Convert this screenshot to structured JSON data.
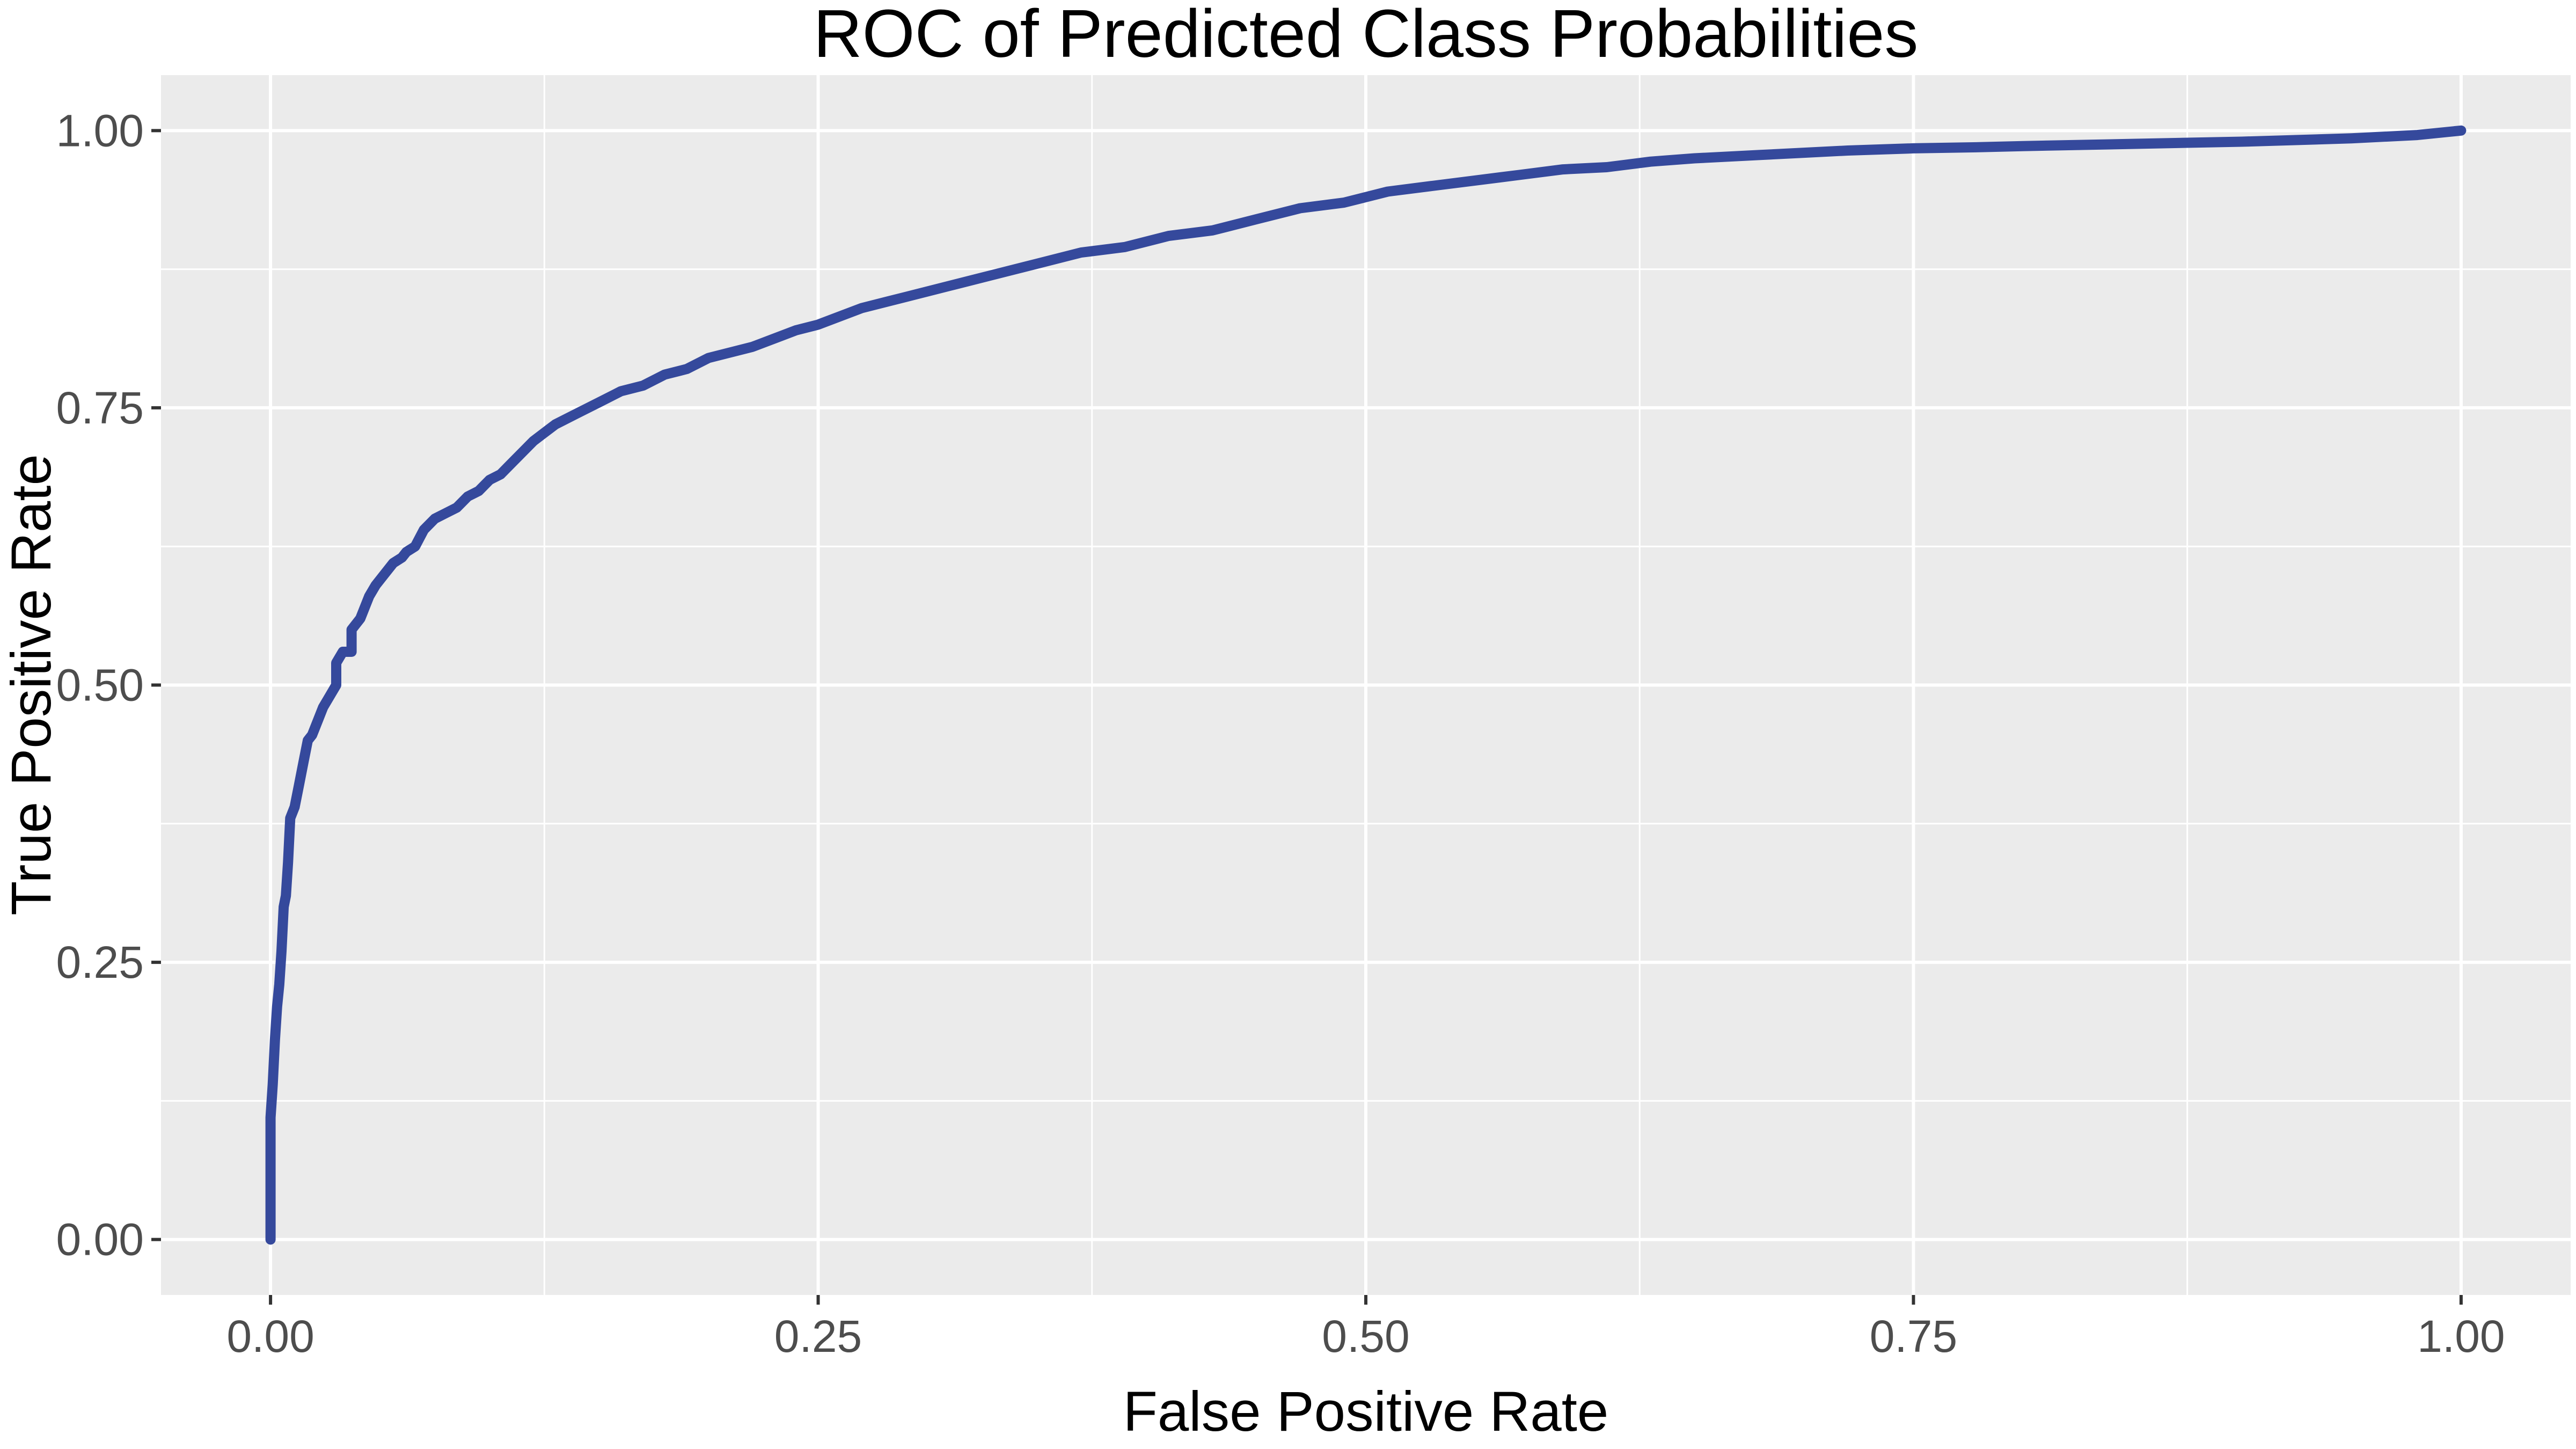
{
  "chart_data": {
    "type": "line",
    "title": "ROC of Predicted Class Probabilities",
    "xlabel": "False Positive Rate",
    "ylabel": "True Positive Rate",
    "xlim": [
      -0.05,
      1.05
    ],
    "ylim": [
      -0.05,
      1.05
    ],
    "x_ticks": [
      0,
      0.25,
      0.5,
      0.75,
      1
    ],
    "x_tick_labels": [
      "0.00",
      "0.25",
      "0.50",
      "0.75",
      "1.00"
    ],
    "y_ticks": [
      0,
      0.25,
      0.5,
      0.75,
      1
    ],
    "y_tick_labels": [
      "0.00",
      "0.25",
      "0.50",
      "0.75",
      "1.00"
    ],
    "grid": true,
    "legend": "none",
    "colors": {
      "panel_background": "#ebebeb",
      "grid_line": "#ffffff",
      "line": "#35499c",
      "tick_label": "#4d4d4d",
      "tick_mark": "#333333"
    },
    "series": [
      {
        "x": [
          0,
          0,
          0.001,
          0.002,
          0.003,
          0.004,
          0.005,
          0.006,
          0.007,
          0.008,
          0.009,
          0.011,
          0.013,
          0.015,
          0.017,
          0.019,
          0.02,
          0.022,
          0.024,
          0.027,
          0.03,
          0.03,
          0.033,
          0.037,
          0.037,
          0.041,
          0.043,
          0.045,
          0.048,
          0.052,
          0.056,
          0.06,
          0.062,
          0.066,
          0.07,
          0.075,
          0.08,
          0.085,
          0.09,
          0.095,
          0.1,
          0.105,
          0.11,
          0.115,
          0.12,
          0.13,
          0.14,
          0.15,
          0.16,
          0.17,
          0.18,
          0.19,
          0.2,
          0.22,
          0.24,
          0.25,
          0.27,
          0.29,
          0.31,
          0.33,
          0.35,
          0.37,
          0.39,
          0.41,
          0.43,
          0.45,
          0.47,
          0.49,
          0.51,
          0.53,
          0.55,
          0.57,
          0.59,
          0.61,
          0.63,
          0.65,
          0.68,
          0.7,
          0.72,
          0.75,
          0.78,
          0.8,
          0.85,
          0.9,
          0.95,
          0.98,
          1.0
        ],
        "y": [
          0,
          0.11,
          0.14,
          0.18,
          0.21,
          0.23,
          0.26,
          0.3,
          0.31,
          0.34,
          0.38,
          0.39,
          0.41,
          0.43,
          0.45,
          0.455,
          0.46,
          0.47,
          0.48,
          0.49,
          0.5,
          0.52,
          0.53,
          0.53,
          0.55,
          0.56,
          0.57,
          0.58,
          0.59,
          0.6,
          0.61,
          0.615,
          0.62,
          0.625,
          0.64,
          0.65,
          0.655,
          0.66,
          0.67,
          0.675,
          0.685,
          0.69,
          0.7,
          0.71,
          0.72,
          0.735,
          0.745,
          0.755,
          0.765,
          0.77,
          0.78,
          0.785,
          0.795,
          0.805,
          0.82,
          0.825,
          0.84,
          0.85,
          0.86,
          0.87,
          0.88,
          0.89,
          0.895,
          0.905,
          0.91,
          0.92,
          0.93,
          0.935,
          0.945,
          0.95,
          0.955,
          0.96,
          0.965,
          0.967,
          0.972,
          0.975,
          0.978,
          0.98,
          0.982,
          0.984,
          0.985,
          0.986,
          0.988,
          0.99,
          0.993,
          0.996,
          1.0
        ]
      }
    ]
  }
}
